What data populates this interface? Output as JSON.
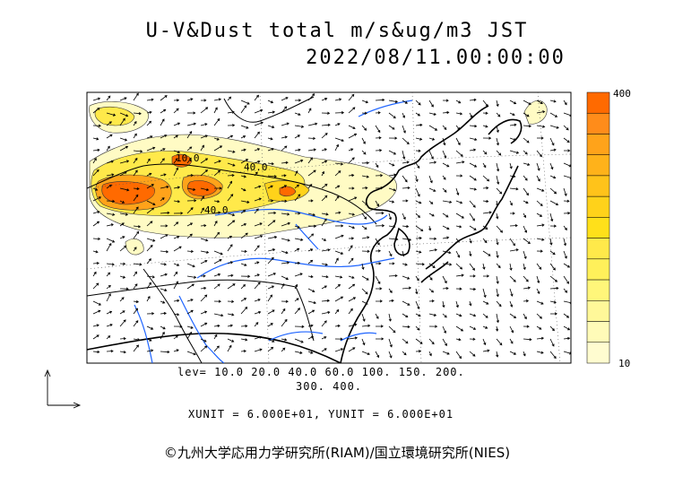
{
  "title_line1": "U-V&Dust total m/s&ug/m3 JST",
  "title_line2": "2022/08/11.00:00:00",
  "contour_labels": [
    "40.0",
    "40.0",
    "10.0"
  ],
  "lev_line1": "lev= 10.0 20.0 40.0 60.0 100. 150. 200.",
  "lev_line2": "300. 400.",
  "unit_line": "XUNIT = 6.000E+01, YUNIT = 6.000E+01",
  "colorbar": {
    "max_label": "400",
    "min_label": "10",
    "colors": [
      "#ff6a00",
      "#ff8c1a",
      "#ffa31a",
      "#ffb21a",
      "#ffc31a",
      "#ffd21a",
      "#ffe01a",
      "#ffe94a",
      "#fff05a",
      "#fff67a",
      "#fff899",
      "#fffbb8",
      "#fffcd0"
    ]
  },
  "colors": {
    "coast": "#000000",
    "rivers": "#1e64ff",
    "dust_high": "#ff6a00",
    "dust_low": "#fff6b0"
  },
  "footer": "©九州大学応用力学研究所(RIAM)/国立環境研究所(NIES)"
}
